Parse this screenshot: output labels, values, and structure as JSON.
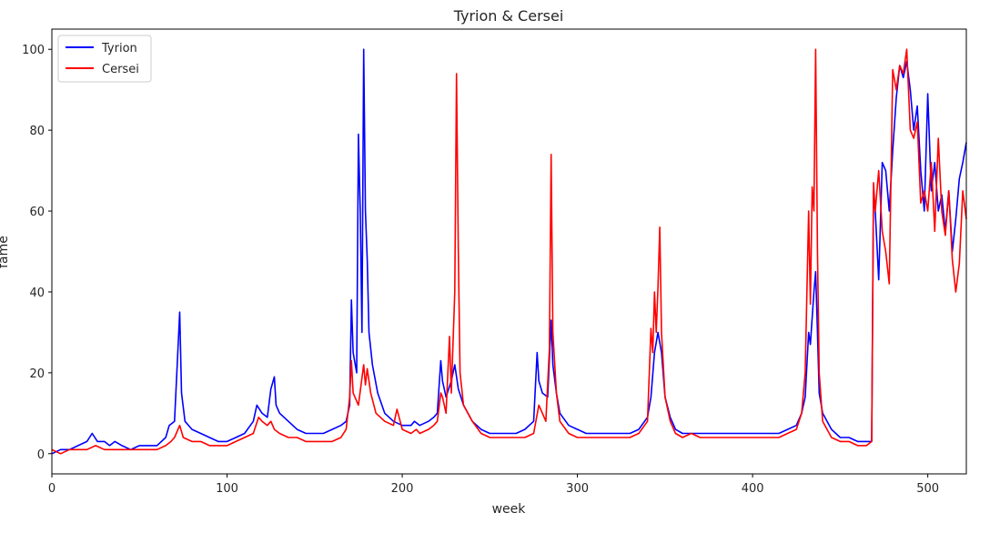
{
  "chart_data": {
    "type": "line",
    "title": "Tyrion & Cersei",
    "xlabel": "week",
    "ylabel": "fame",
    "xlim": [
      0,
      522
    ],
    "ylim": [
      -5,
      105
    ],
    "xticks": [
      0,
      100,
      200,
      300,
      400,
      500
    ],
    "yticks": [
      0,
      20,
      40,
      60,
      80,
      100
    ],
    "grid": false,
    "legend_position": "top-left",
    "series": [
      {
        "name": "Tyrion",
        "color": "#0000ff",
        "points": [
          [
            0,
            0
          ],
          [
            5,
            1
          ],
          [
            10,
            1
          ],
          [
            15,
            2
          ],
          [
            20,
            3
          ],
          [
            23,
            5
          ],
          [
            26,
            3
          ],
          [
            30,
            3
          ],
          [
            33,
            2
          ],
          [
            36,
            3
          ],
          [
            40,
            2
          ],
          [
            45,
            1
          ],
          [
            50,
            2
          ],
          [
            55,
            2
          ],
          [
            60,
            2
          ],
          [
            65,
            4
          ],
          [
            67,
            7
          ],
          [
            70,
            8
          ],
          [
            73,
            35
          ],
          [
            74,
            15
          ],
          [
            76,
            8
          ],
          [
            80,
            6
          ],
          [
            85,
            5
          ],
          [
            90,
            4
          ],
          [
            95,
            3
          ],
          [
            100,
            3
          ],
          [
            105,
            4
          ],
          [
            110,
            5
          ],
          [
            115,
            8
          ],
          [
            117,
            12
          ],
          [
            120,
            10
          ],
          [
            123,
            9
          ],
          [
            125,
            16
          ],
          [
            127,
            19
          ],
          [
            128,
            12
          ],
          [
            130,
            10
          ],
          [
            135,
            8
          ],
          [
            140,
            6
          ],
          [
            145,
            5
          ],
          [
            150,
            5
          ],
          [
            155,
            5
          ],
          [
            160,
            6
          ],
          [
            165,
            7
          ],
          [
            168,
            8
          ],
          [
            170,
            12
          ],
          [
            171,
            38
          ],
          [
            172,
            25
          ],
          [
            174,
            20
          ],
          [
            175,
            79
          ],
          [
            176,
            60
          ],
          [
            177,
            30
          ],
          [
            178,
            100
          ],
          [
            179,
            60
          ],
          [
            180,
            48
          ],
          [
            181,
            30
          ],
          [
            183,
            22
          ],
          [
            186,
            15
          ],
          [
            190,
            10
          ],
          [
            195,
            8
          ],
          [
            200,
            7
          ],
          [
            205,
            7
          ],
          [
            207,
            8
          ],
          [
            210,
            7
          ],
          [
            215,
            8
          ],
          [
            218,
            9
          ],
          [
            220,
            10
          ],
          [
            222,
            23
          ],
          [
            223,
            18
          ],
          [
            225,
            14
          ],
          [
            228,
            18
          ],
          [
            230,
            22
          ],
          [
            232,
            16
          ],
          [
            235,
            12
          ],
          [
            240,
            8
          ],
          [
            245,
            6
          ],
          [
            250,
            5
          ],
          [
            255,
            5
          ],
          [
            260,
            5
          ],
          [
            265,
            5
          ],
          [
            270,
            6
          ],
          [
            275,
            8
          ],
          [
            277,
            25
          ],
          [
            278,
            18
          ],
          [
            280,
            15
          ],
          [
            283,
            14
          ],
          [
            285,
            33
          ],
          [
            286,
            22
          ],
          [
            288,
            15
          ],
          [
            290,
            10
          ],
          [
            295,
            7
          ],
          [
            300,
            6
          ],
          [
            305,
            5
          ],
          [
            310,
            5
          ],
          [
            315,
            5
          ],
          [
            320,
            5
          ],
          [
            325,
            5
          ],
          [
            330,
            5
          ],
          [
            335,
            6
          ],
          [
            340,
            9
          ],
          [
            342,
            14
          ],
          [
            344,
            25
          ],
          [
            346,
            30
          ],
          [
            348,
            25
          ],
          [
            350,
            14
          ],
          [
            353,
            9
          ],
          [
            356,
            6
          ],
          [
            360,
            5
          ],
          [
            365,
            5
          ],
          [
            370,
            5
          ],
          [
            375,
            5
          ],
          [
            380,
            5
          ],
          [
            385,
            5
          ],
          [
            390,
            5
          ],
          [
            395,
            5
          ],
          [
            400,
            5
          ],
          [
            405,
            5
          ],
          [
            410,
            5
          ],
          [
            415,
            5
          ],
          [
            420,
            6
          ],
          [
            425,
            7
          ],
          [
            428,
            10
          ],
          [
            430,
            14
          ],
          [
            432,
            30
          ],
          [
            433,
            27
          ],
          [
            435,
            40
          ],
          [
            436,
            45
          ],
          [
            437,
            30
          ],
          [
            438,
            15
          ],
          [
            440,
            10
          ],
          [
            445,
            6
          ],
          [
            450,
            4
          ],
          [
            455,
            4
          ],
          [
            460,
            3
          ],
          [
            465,
            3
          ],
          [
            468,
            3
          ],
          [
            469,
            65
          ],
          [
            470,
            60
          ],
          [
            472,
            43
          ],
          [
            474,
            72
          ],
          [
            476,
            70
          ],
          [
            478,
            60
          ],
          [
            480,
            75
          ],
          [
            482,
            88
          ],
          [
            484,
            96
          ],
          [
            486,
            93
          ],
          [
            488,
            97
          ],
          [
            490,
            90
          ],
          [
            492,
            80
          ],
          [
            494,
            86
          ],
          [
            496,
            70
          ],
          [
            498,
            60
          ],
          [
            500,
            89
          ],
          [
            502,
            65
          ],
          [
            504,
            72
          ],
          [
            506,
            60
          ],
          [
            508,
            64
          ],
          [
            510,
            55
          ],
          [
            512,
            65
          ],
          [
            514,
            50
          ],
          [
            516,
            58
          ],
          [
            518,
            68
          ],
          [
            520,
            72
          ],
          [
            522,
            77
          ]
        ]
      },
      {
        "name": "Cersei",
        "color": "#ff0000",
        "points": [
          [
            0,
            1
          ],
          [
            5,
            0
          ],
          [
            10,
            1
          ],
          [
            15,
            1
          ],
          [
            20,
            1
          ],
          [
            25,
            2
          ],
          [
            30,
            1
          ],
          [
            35,
            1
          ],
          [
            40,
            1
          ],
          [
            45,
            1
          ],
          [
            50,
            1
          ],
          [
            55,
            1
          ],
          [
            60,
            1
          ],
          [
            65,
            2
          ],
          [
            68,
            3
          ],
          [
            70,
            4
          ],
          [
            73,
            7
          ],
          [
            75,
            4
          ],
          [
            80,
            3
          ],
          [
            85,
            3
          ],
          [
            90,
            2
          ],
          [
            95,
            2
          ],
          [
            100,
            2
          ],
          [
            105,
            3
          ],
          [
            110,
            4
          ],
          [
            115,
            5
          ],
          [
            118,
            9
          ],
          [
            120,
            8
          ],
          [
            123,
            7
          ],
          [
            125,
            8
          ],
          [
            127,
            6
          ],
          [
            130,
            5
          ],
          [
            135,
            4
          ],
          [
            140,
            4
          ],
          [
            145,
            3
          ],
          [
            150,
            3
          ],
          [
            155,
            3
          ],
          [
            160,
            3
          ],
          [
            165,
            4
          ],
          [
            168,
            6
          ],
          [
            170,
            14
          ],
          [
            171,
            23
          ],
          [
            172,
            15
          ],
          [
            175,
            12
          ],
          [
            178,
            22
          ],
          [
            179,
            17
          ],
          [
            180,
            21
          ],
          [
            182,
            15
          ],
          [
            185,
            10
          ],
          [
            190,
            8
          ],
          [
            195,
            7
          ],
          [
            197,
            11
          ],
          [
            200,
            6
          ],
          [
            205,
            5
          ],
          [
            208,
            6
          ],
          [
            210,
            5
          ],
          [
            215,
            6
          ],
          [
            218,
            7
          ],
          [
            220,
            8
          ],
          [
            222,
            15
          ],
          [
            223,
            14
          ],
          [
            225,
            10
          ],
          [
            227,
            29
          ],
          [
            228,
            15
          ],
          [
            230,
            40
          ],
          [
            231,
            94
          ],
          [
            232,
            50
          ],
          [
            233,
            20
          ],
          [
            235,
            12
          ],
          [
            240,
            8
          ],
          [
            245,
            5
          ],
          [
            250,
            4
          ],
          [
            255,
            4
          ],
          [
            260,
            4
          ],
          [
            265,
            4
          ],
          [
            270,
            4
          ],
          [
            275,
            5
          ],
          [
            278,
            12
          ],
          [
            280,
            10
          ],
          [
            282,
            8
          ],
          [
            284,
            26
          ],
          [
            285,
            74
          ],
          [
            286,
            30
          ],
          [
            288,
            15
          ],
          [
            290,
            8
          ],
          [
            295,
            5
          ],
          [
            300,
            4
          ],
          [
            305,
            4
          ],
          [
            310,
            4
          ],
          [
            315,
            4
          ],
          [
            320,
            4
          ],
          [
            325,
            4
          ],
          [
            330,
            4
          ],
          [
            335,
            5
          ],
          [
            340,
            8
          ],
          [
            342,
            31
          ],
          [
            343,
            25
          ],
          [
            344,
            40
          ],
          [
            345,
            30
          ],
          [
            346,
            41
          ],
          [
            347,
            56
          ],
          [
            348,
            30
          ],
          [
            350,
            14
          ],
          [
            353,
            8
          ],
          [
            356,
            5
          ],
          [
            360,
            4
          ],
          [
            365,
            5
          ],
          [
            370,
            4
          ],
          [
            375,
            4
          ],
          [
            380,
            4
          ],
          [
            385,
            4
          ],
          [
            390,
            4
          ],
          [
            395,
            4
          ],
          [
            400,
            4
          ],
          [
            405,
            4
          ],
          [
            410,
            4
          ],
          [
            415,
            4
          ],
          [
            420,
            5
          ],
          [
            425,
            6
          ],
          [
            428,
            10
          ],
          [
            430,
            20
          ],
          [
            432,
            60
          ],
          [
            433,
            37
          ],
          [
            434,
            66
          ],
          [
            435,
            60
          ],
          [
            436,
            100
          ],
          [
            437,
            50
          ],
          [
            438,
            20
          ],
          [
            440,
            8
          ],
          [
            445,
            4
          ],
          [
            450,
            3
          ],
          [
            455,
            3
          ],
          [
            460,
            2
          ],
          [
            465,
            2
          ],
          [
            468,
            3
          ],
          [
            469,
            67
          ],
          [
            470,
            60
          ],
          [
            472,
            70
          ],
          [
            474,
            55
          ],
          [
            476,
            50
          ],
          [
            478,
            42
          ],
          [
            480,
            95
          ],
          [
            482,
            90
          ],
          [
            484,
            96
          ],
          [
            486,
            94
          ],
          [
            488,
            100
          ],
          [
            490,
            80
          ],
          [
            492,
            78
          ],
          [
            494,
            82
          ],
          [
            496,
            62
          ],
          [
            498,
            65
          ],
          [
            500,
            60
          ],
          [
            502,
            72
          ],
          [
            504,
            55
          ],
          [
            506,
            78
          ],
          [
            508,
            60
          ],
          [
            510,
            54
          ],
          [
            512,
            65
          ],
          [
            514,
            48
          ],
          [
            516,
            40
          ],
          [
            518,
            47
          ],
          [
            520,
            65
          ],
          [
            522,
            58
          ]
        ]
      }
    ]
  }
}
